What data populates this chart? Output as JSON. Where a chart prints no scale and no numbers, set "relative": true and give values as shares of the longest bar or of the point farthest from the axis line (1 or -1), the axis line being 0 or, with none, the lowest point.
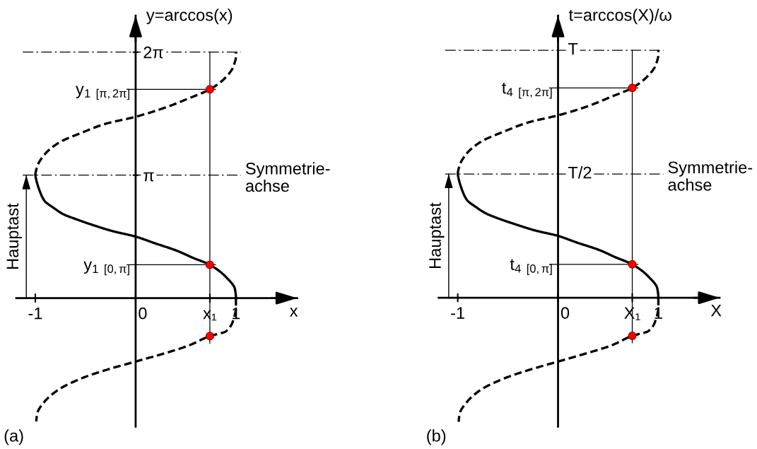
{
  "chart_data": [
    {
      "type": "line",
      "xlabel": "x",
      "ylabel": "y=arccos(x)",
      "xlim": [
        -1.19,
        1.61
      ],
      "ylim": [
        -3.28,
        7.21
      ],
      "xticks": [
        -1,
        0,
        {
          "value": 0.74,
          "label": "x₁"
        },
        1
      ],
      "yticks": [
        {
          "value": 3.14,
          "label": "π"
        },
        {
          "value": 6.28,
          "label": "2π"
        }
      ],
      "series": [
        {
          "line_style": "dashed",
          "color": "#000000",
          "x": [
            1.0,
            1.0,
            0.97,
            0.9,
            0.74,
            0.53,
            0.29,
            0.0,
            -0.3,
            -0.53,
            -0.77,
            -0.91,
            -0.98,
            -0.99
          ],
          "values": [
            0,
            -0.23,
            -0.59,
            -0.85,
            -0.97,
            -1.21,
            -1.41,
            -1.62,
            -1.84,
            -2.04,
            -2.34,
            -2.65,
            -2.94,
            -3.15
          ]
        },
        {
          "line_style": "solid",
          "color": "#000000",
          "x": [
            1.0,
            0.99,
            0.9,
            0.74,
            0.57,
            0.41,
            0.18,
            0.0,
            -0.23,
            -0.42,
            -0.6,
            -0.72,
            -0.81,
            -0.91,
            -0.96,
            -0.99,
            -1.0
          ],
          "values": [
            0,
            0.23,
            0.54,
            0.85,
            1.03,
            1.21,
            1.41,
            1.57,
            1.71,
            1.86,
            2.02,
            2.14,
            2.29,
            2.49,
            2.76,
            3.01,
            3.14
          ]
        },
        {
          "line_style": "dashed",
          "color": "#000000",
          "x": [
            -1.0,
            -0.98,
            -0.91,
            -0.77,
            -0.53,
            -0.3,
            0.0,
            0.29,
            0.53,
            0.74,
            0.88,
            0.97,
            1.0,
            1.0
          ],
          "values": [
            3.14,
            3.37,
            3.66,
            3.96,
            4.23,
            4.45,
            4.63,
            4.86,
            5.1,
            5.33,
            5.59,
            5.89,
            6.18,
            6.28
          ]
        },
        {
          "type": "scatter",
          "marker": "circle",
          "color": "#ff0000",
          "x": [
            0.74,
            0.74,
            0.74
          ],
          "values": [
            5.33,
            0.85,
            -0.97
          ]
        }
      ],
      "ref_lines": [
        {
          "axis": "y",
          "value": 3.14,
          "label": "Symmetrie-\nachse",
          "line_style": "dashdot",
          "color": "#000000"
        },
        {
          "axis": "y",
          "value": 6.28,
          "line_style": "dashdot",
          "color": "#000000"
        },
        {
          "axis": "y",
          "value": 5.33,
          "label": "y$_{1}$ $_{[π,2π]}$",
          "line_style": "solid",
          "color": "#000000"
        },
        {
          "axis": "y",
          "value": 0.85,
          "label": "y$_{1}$ $_{[0,π]}$",
          "line_style": "solid",
          "color": "#000000"
        },
        {
          "axis": "x",
          "value": 0.74,
          "line_style": "solid",
          "color": "#000000"
        },
        {
          "axis": "x",
          "value": -1.09,
          "label": "Hauptast",
          "line_style": "solid",
          "color": "#000000"
        }
      ],
      "annotations": [
        "(a)"
      ]
    },
    {
      "type": "line",
      "relative": true,
      "xlabel": "X",
      "ylabel": "t=arccos(X)/ω",
      "xlim": [
        -1.19,
        1.61
      ],
      "xticks": [
        -1,
        0,
        {
          "value": 0.74,
          "label": "X₁"
        },
        1
      ],
      "series": [
        {
          "line_style": "dashed",
          "color": "#000000",
          "x": [
            1.0,
            1.0,
            0.97,
            0.9,
            0.74,
            0.53,
            0.29,
            0.0,
            -0.3,
            -0.53,
            -0.77,
            -0.91,
            -0.98,
            -0.99
          ],
          "values": [
            0,
            -0.037,
            -0.094,
            -0.135,
            -0.154,
            -0.193,
            -0.224,
            -0.258,
            -0.293,
            -0.325,
            -0.372,
            -0.422,
            -0.468,
            -0.501
          ]
        },
        {
          "line_style": "solid",
          "color": "#000000",
          "x": [
            1.0,
            0.99,
            0.9,
            0.74,
            0.57,
            0.41,
            0.18,
            0.0,
            -0.23,
            -0.42,
            -0.6,
            -0.72,
            -0.81,
            -0.91,
            -0.96,
            -0.99,
            -1.0
          ],
          "values": [
            0,
            0.037,
            0.086,
            0.135,
            0.164,
            0.193,
            0.224,
            0.25,
            0.272,
            0.296,
            0.321,
            0.341,
            0.364,
            0.396,
            0.439,
            0.479,
            0.5
          ]
        },
        {
          "line_style": "dashed",
          "color": "#000000",
          "x": [
            -1.0,
            -0.98,
            -0.91,
            -0.77,
            -0.53,
            -0.3,
            0.0,
            0.29,
            0.53,
            0.74,
            0.88,
            0.97,
            1.0,
            1.0
          ],
          "values": [
            0.5,
            0.536,
            0.583,
            0.63,
            0.673,
            0.708,
            0.737,
            0.773,
            0.812,
            0.848,
            0.89,
            0.937,
            0.984,
            1.0
          ]
        },
        {
          "type": "scatter",
          "marker": "circle",
          "color": "#ff0000",
          "x": [
            0.74,
            0.74,
            0.74
          ],
          "values": [
            0.848,
            0.135,
            -0.154
          ]
        }
      ],
      "ref_lines": [
        {
          "axis": "y",
          "value": 0.5,
          "label": "Symmetrie-\nachse",
          "line_style": "dashdot",
          "color": "#000000"
        },
        {
          "axis": "y",
          "value": 1,
          "line_style": "dashdot",
          "color": "#000000"
        },
        {
          "axis": "y",
          "value": 0.848,
          "label": "t$_{4}$ $_{[π,2π]}$",
          "line_style": "solid",
          "color": "#000000"
        },
        {
          "axis": "y",
          "value": 0.135,
          "label": "t$_{4}$ $_{[0,π]}$",
          "line_style": "solid",
          "color": "#000000"
        },
        {
          "axis": "x",
          "value": 0.74,
          "line_style": "solid",
          "color": "#000000"
        },
        {
          "axis": "x",
          "value": -1.09,
          "label": "Hauptast",
          "line_style": "solid",
          "color": "#000000"
        }
      ],
      "annotations": [
        {
          "text": "T/2",
          "x": 0,
          "y": 0.5
        },
        {
          "text": "T",
          "x": 0,
          "y": 1
        },
        "(b)"
      ]
    }
  ]
}
